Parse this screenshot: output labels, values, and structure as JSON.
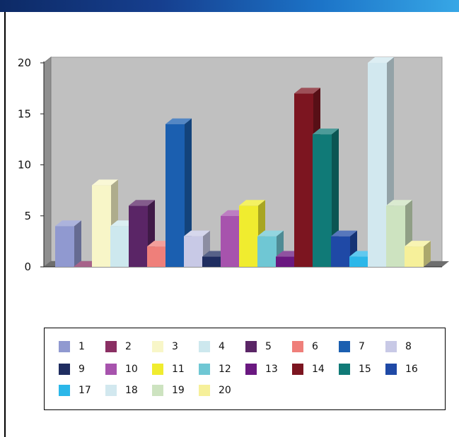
{
  "chart_data": {
    "type": "bar",
    "categories": [
      "1",
      "2",
      "3",
      "4",
      "5",
      "6",
      "7",
      "8",
      "9",
      "10",
      "11",
      "12",
      "13",
      "14",
      "15",
      "16",
      "17",
      "18",
      "19",
      "20"
    ],
    "values": [
      4,
      0,
      8,
      4,
      6,
      2,
      14,
      3,
      1,
      5,
      6,
      3,
      1,
      17,
      13,
      3,
      1,
      20,
      6,
      2
    ],
    "colors": [
      "#9099d0",
      "#8a2f63",
      "#f8f6c8",
      "#cde8ee",
      "#5a2566",
      "#ef7f7a",
      "#1b5fb0",
      "#c8c9e6",
      "#1f2d60",
      "#a753ad",
      "#f0ec2f",
      "#6fc7d4",
      "#6a1880",
      "#7c1520",
      "#107a77",
      "#1f49a6",
      "#2bb7e9",
      "#d2e8ef",
      "#cde3c0",
      "#f6f09a"
    ],
    "ylim": [
      0,
      20
    ],
    "yticks": [
      "0",
      "5",
      "10",
      "15",
      "20"
    ],
    "grid": false,
    "legend_position": "bottom",
    "title": "",
    "xlabel": "",
    "ylabel": ""
  }
}
